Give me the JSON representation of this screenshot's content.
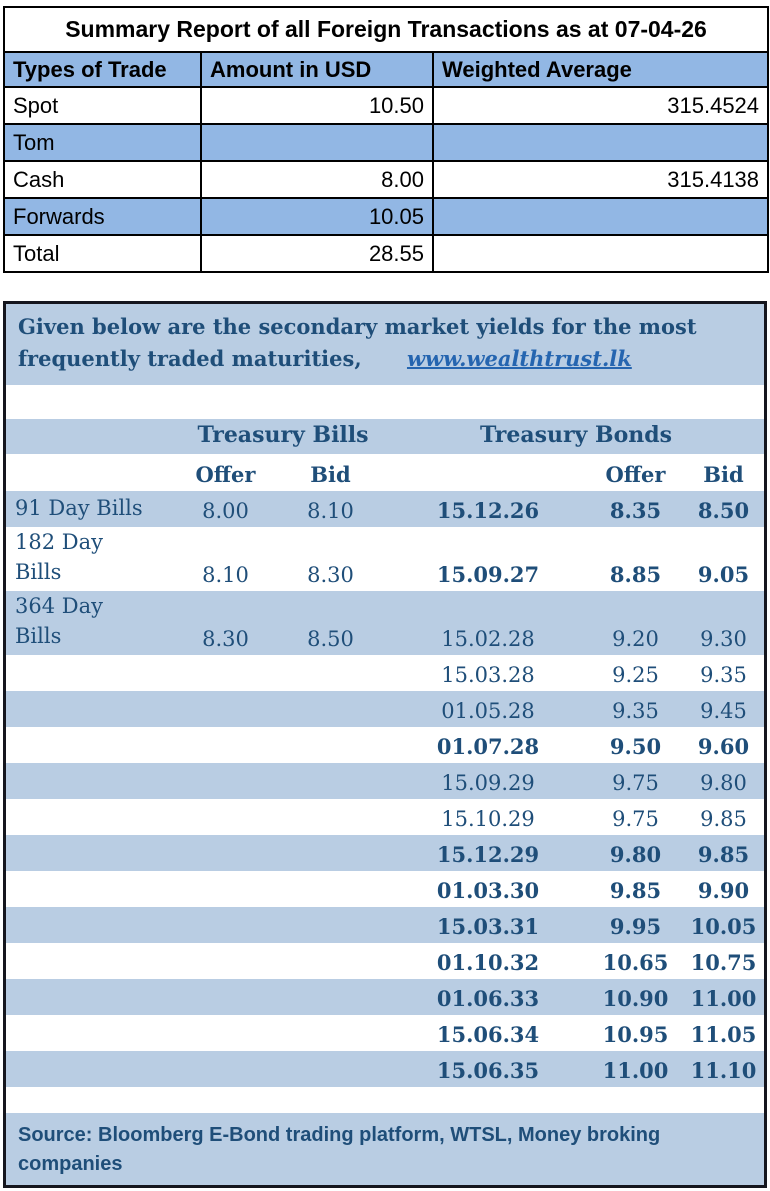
{
  "summary_table": {
    "title": "Summary Report of all Foreign Transactions as at 07-04-26",
    "columns": [
      "Types of Trade",
      "Amount in USD",
      "Weighted Average"
    ],
    "rows": [
      {
        "type": "Spot",
        "amount": "10.50",
        "weighted_average": "315.4524",
        "shaded": false
      },
      {
        "type": "Tom",
        "amount": "",
        "weighted_average": "",
        "shaded": true
      },
      {
        "type": "Cash",
        "amount": "8.00",
        "weighted_average": "315.4138",
        "shaded": false
      },
      {
        "type": "Forwards",
        "amount": "10.05",
        "weighted_average": "",
        "shaded": true
      },
      {
        "type": "Total",
        "amount": "28.55",
        "weighted_average": "",
        "shaded": false
      }
    ]
  },
  "yields_section": {
    "intro_line1": "Given below are the secondary market yields for the most",
    "intro_line2": "frequently traded maturities,",
    "link_text": "www.wealthtrust.lk",
    "group_headers": {
      "bills": "Treasury Bills",
      "bonds": "Treasury Bonds"
    },
    "sub_headers": {
      "bills_offer": "Offer",
      "bills_bid": "Bid",
      "bonds_offer": "Offer",
      "bonds_bid": "Bid"
    },
    "rows": [
      {
        "label_lines": [
          "91 Day Bills"
        ],
        "bill_offer": "8.00",
        "bill_bid": "8.10",
        "bond_date": "15.12.26",
        "bond_offer": "8.35",
        "bond_bid": "8.50",
        "bond_bold": true,
        "shaded": true
      },
      {
        "label_lines": [
          "182 Day",
          "Bills"
        ],
        "bill_offer": "8.10",
        "bill_bid": "8.30",
        "bond_date": "15.09.27",
        "bond_offer": "8.85",
        "bond_bid": "9.05",
        "bond_bold": true,
        "shaded": false
      },
      {
        "label_lines": [
          "364 Day",
          "Bills"
        ],
        "bill_offer": "8.30",
        "bill_bid": "8.50",
        "bond_date": "15.02.28",
        "bond_offer": "9.20",
        "bond_bid": "9.30",
        "bond_bold": false,
        "shaded": true
      },
      {
        "label_lines": [],
        "bill_offer": "",
        "bill_bid": "",
        "bond_date": "15.03.28",
        "bond_offer": "9.25",
        "bond_bid": "9.35",
        "bond_bold": false,
        "shaded": false
      },
      {
        "label_lines": [],
        "bill_offer": "",
        "bill_bid": "",
        "bond_date": "01.05.28",
        "bond_offer": "9.35",
        "bond_bid": "9.45",
        "bond_bold": false,
        "shaded": true
      },
      {
        "label_lines": [],
        "bill_offer": "",
        "bill_bid": "",
        "bond_date": "01.07.28",
        "bond_offer": "9.50",
        "bond_bid": "9.60",
        "bond_bold": true,
        "shaded": false
      },
      {
        "label_lines": [],
        "bill_offer": "",
        "bill_bid": "",
        "bond_date": "15.09.29",
        "bond_offer": "9.75",
        "bond_bid": "9.80",
        "bond_bold": false,
        "shaded": true
      },
      {
        "label_lines": [],
        "bill_offer": "",
        "bill_bid": "",
        "bond_date": "15.10.29",
        "bond_offer": "9.75",
        "bond_bid": "9.85",
        "bond_bold": false,
        "shaded": false
      },
      {
        "label_lines": [],
        "bill_offer": "",
        "bill_bid": "",
        "bond_date": "15.12.29",
        "bond_offer": "9.80",
        "bond_bid": "9.85",
        "bond_bold": true,
        "shaded": true
      },
      {
        "label_lines": [],
        "bill_offer": "",
        "bill_bid": "",
        "bond_date": "01.03.30",
        "bond_offer": "9.85",
        "bond_bid": "9.90",
        "bond_bold": true,
        "shaded": false
      },
      {
        "label_lines": [],
        "bill_offer": "",
        "bill_bid": "",
        "bond_date": "15.03.31",
        "bond_offer": "9.95",
        "bond_bid": "10.05",
        "bond_bold": true,
        "shaded": true
      },
      {
        "label_lines": [],
        "bill_offer": "",
        "bill_bid": "",
        "bond_date": "01.10.32",
        "bond_offer": "10.65",
        "bond_bid": "10.75",
        "bond_bold": true,
        "shaded": false
      },
      {
        "label_lines": [],
        "bill_offer": "",
        "bill_bid": "",
        "bond_date": "01.06.33",
        "bond_offer": "10.90",
        "bond_bid": "11.00",
        "bond_bold": true,
        "shaded": true
      },
      {
        "label_lines": [],
        "bill_offer": "",
        "bill_bid": "",
        "bond_date": "15.06.34",
        "bond_offer": "10.95",
        "bond_bid": "11.05",
        "bond_bold": true,
        "shaded": false
      },
      {
        "label_lines": [],
        "bill_offer": "",
        "bill_bid": "",
        "bond_date": "15.06.35",
        "bond_offer": "11.00",
        "bond_bid": "11.10",
        "bond_bold": true,
        "shaded": true
      }
    ],
    "source_line1": "Source: Bloomberg E-Bond trading platform, WTSL, Money broking",
    "source_line2": "companies"
  },
  "colors": {
    "summary_row_blue": "#92b7e4",
    "yields_band_blue": "#b9cde3",
    "navy_text": "#1f4e79",
    "link_blue": "#2565b0",
    "summary_border": "#000000",
    "section_border": "#15161e"
  }
}
